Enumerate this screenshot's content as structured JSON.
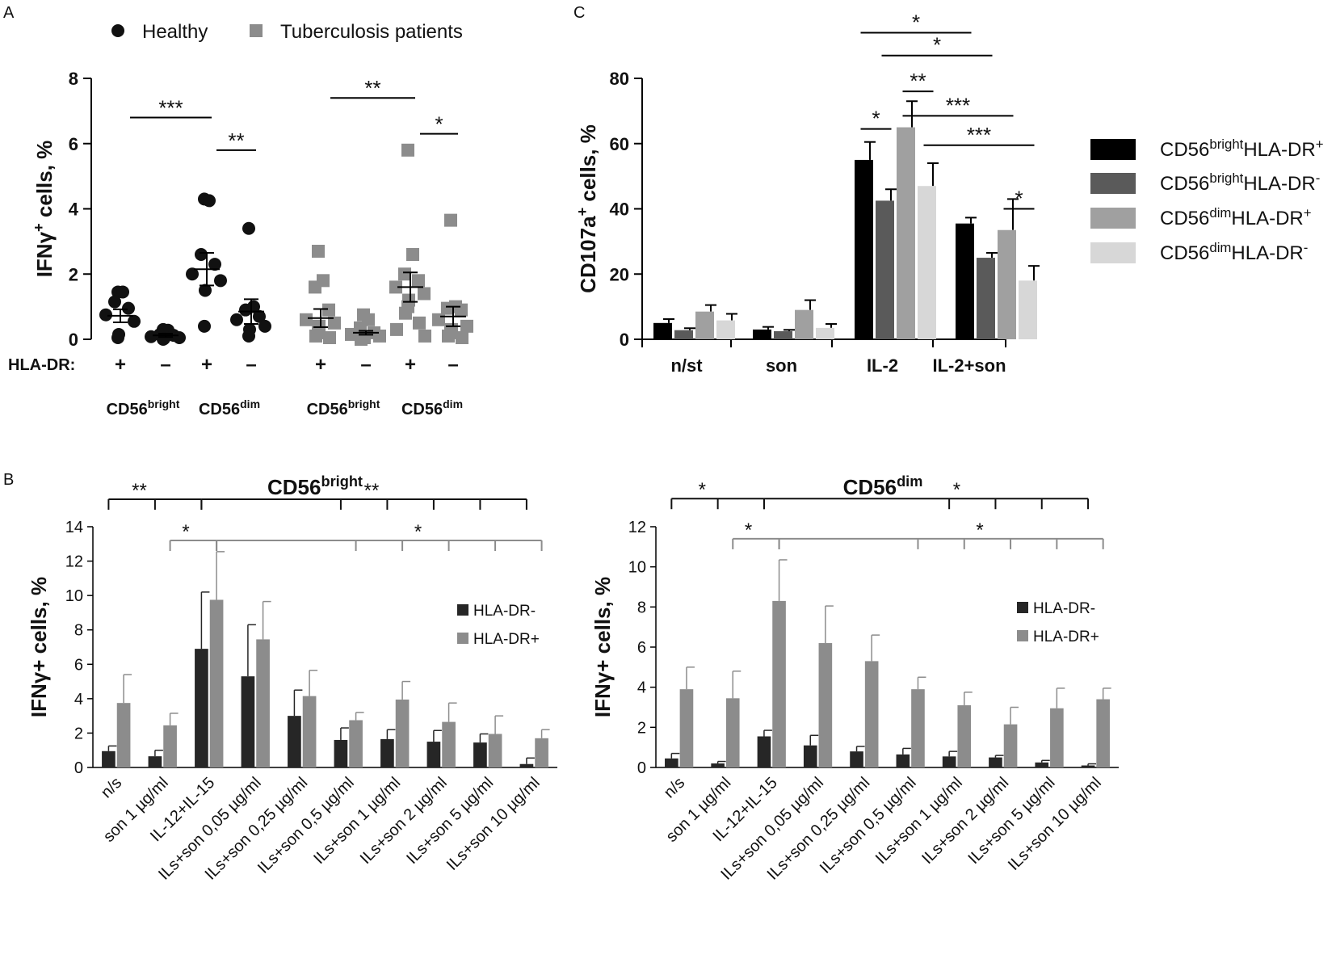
{
  "figure_labels": {
    "a": "A",
    "b": "B",
    "c": "C"
  },
  "chart_data": [
    {
      "id": "panelA",
      "type": "scatter",
      "title": "",
      "ylabel_main": "IFNγ",
      "ylabel_sup": "+",
      "ylabel_rest": " cells, %",
      "ylim": [
        0,
        8
      ],
      "yticks": [
        "0",
        "2",
        "4",
        "6",
        "8"
      ],
      "legend": [
        {
          "name": "Healthy",
          "color": "#111111",
          "marker": "circle"
        },
        {
          "name": "Tuberculosis patients",
          "color": "#8c8c8c",
          "marker": "square"
        }
      ],
      "row_label": "HLA-DR:",
      "hla_signs": [
        "+",
        "–",
        "+",
        "–",
        "+",
        "–",
        "+",
        "–"
      ],
      "group_labels": [
        {
          "main": "CD56",
          "sup": "bright"
        },
        {
          "main": "CD56",
          "sup": "dim"
        },
        {
          "main": "CD56",
          "sup": "bright"
        },
        {
          "main": "CD56",
          "sup": "dim"
        }
      ],
      "series": [
        {
          "name": "Healthy",
          "group": "CD56bright HLA-DR+",
          "color": "#111111",
          "marker": "circle",
          "mean": 0.72,
          "sem": 0.2,
          "values": [
            1.45,
            1.45,
            1.15,
            0.95,
            0.75,
            0.55,
            0.15,
            0.05
          ]
        },
        {
          "name": "Healthy",
          "group": "CD56bright HLA-DR-",
          "color": "#111111",
          "marker": "circle",
          "mean": 0.12,
          "sem": 0.05,
          "values": [
            0.3,
            0.28,
            0.15,
            0.12,
            0.08,
            0.05,
            0.02,
            0.0
          ]
        },
        {
          "name": "Healthy",
          "group": "CD56dim HLA-DR+",
          "color": "#111111",
          "marker": "circle",
          "mean": 2.15,
          "sem": 0.5,
          "values": [
            4.3,
            4.25,
            2.6,
            2.3,
            2.0,
            1.8,
            1.5,
            0.4
          ]
        },
        {
          "name": "Healthy",
          "group": "CD56dim HLA-DR-",
          "color": "#111111",
          "marker": "circle",
          "mean": 0.85,
          "sem": 0.38,
          "values": [
            3.4,
            1.0,
            0.9,
            0.7,
            0.6,
            0.4,
            0.3,
            0.1
          ]
        },
        {
          "name": "Tuberculosis patients",
          "group": "CD56bright HLA-DR+",
          "color": "#8c8c8c",
          "marker": "square",
          "mean": 0.65,
          "sem": 0.28,
          "values": [
            2.7,
            1.8,
            1.6,
            0.9,
            0.6,
            0.5,
            0.4,
            0.2,
            0.1,
            0.05
          ]
        },
        {
          "name": "Tuberculosis patients",
          "group": "CD56bright HLA-DR-",
          "color": "#8c8c8c",
          "marker": "square",
          "mean": 0.2,
          "sem": 0.06,
          "values": [
            0.75,
            0.6,
            0.35,
            0.2,
            0.15,
            0.1,
            0.05,
            0.05,
            0.0
          ]
        },
        {
          "name": "Tuberculosis patients",
          "group": "CD56dim HLA-DR+",
          "color": "#8c8c8c",
          "marker": "square",
          "mean": 1.6,
          "sem": 0.45,
          "values": [
            5.8,
            2.6,
            2.0,
            1.8,
            1.6,
            1.4,
            1.2,
            1.0,
            0.8,
            0.5,
            0.3,
            0.1
          ]
        },
        {
          "name": "Tuberculosis patients",
          "group": "CD56dim HLA-DR-",
          "color": "#8c8c8c",
          "marker": "square",
          "mean": 0.7,
          "sem": 0.3,
          "values": [
            3.65,
            1.0,
            0.95,
            0.9,
            0.6,
            0.4,
            0.3,
            0.2,
            0.1,
            0.05
          ]
        }
      ],
      "significance": [
        {
          "label": "***",
          "from": 0,
          "to": 2,
          "y": 6.8
        },
        {
          "label": "**",
          "from": 2,
          "to": 3,
          "y": 5.8
        },
        {
          "label": "**",
          "from": 4,
          "to": 6,
          "y": 7.4
        },
        {
          "label": "*",
          "from": 6,
          "to": 7,
          "y": 6.3
        }
      ]
    },
    {
      "id": "panelC",
      "type": "bar",
      "ylabel_main": "CD107a",
      "ylabel_sup": "+",
      "ylabel_rest": " cells, %",
      "ylim": [
        0,
        80
      ],
      "yticks": [
        "0",
        "20",
        "40",
        "60",
        "80"
      ],
      "categories": [
        "n/st",
        "son",
        "IL-2",
        "IL-2+son"
      ],
      "series": [
        {
          "name": "CD56brightHLA-DR+",
          "label_main": "CD56",
          "label_sup": "bright",
          "label_rest": "HLA-DR",
          "label_sign": "+",
          "color": "#000000",
          "values": [
            5.0,
            3.0,
            55.0,
            35.5
          ],
          "errors": [
            1.2,
            0.8,
            5.5,
            1.8
          ]
        },
        {
          "name": "CD56brightHLA-DR-",
          "label_main": "CD56",
          "label_sup": "bright",
          "label_rest": "HLA-DR",
          "label_sign": "-",
          "color": "#5a5a5a",
          "values": [
            2.8,
            2.5,
            42.5,
            25.0
          ],
          "errors": [
            0.6,
            0.4,
            3.5,
            1.5
          ]
        },
        {
          "name": "CD56dimHLA-DR+",
          "label_main": "CD56",
          "label_sup": "dim",
          "label_rest": "HLA-DR",
          "label_sign": "+",
          "color": "#a0a0a0",
          "values": [
            8.5,
            9.0,
            65.0,
            33.5
          ],
          "errors": [
            2.0,
            3.0,
            8.0,
            9.5
          ]
        },
        {
          "name": "CD56dimHLA-DR-",
          "label_main": "CD56",
          "label_sup": "dim",
          "label_rest": "HLA-DR",
          "label_sign": "-",
          "color": "#d7d7d7",
          "values": [
            5.8,
            3.5,
            47.0,
            18.0
          ],
          "errors": [
            2.0,
            1.2,
            7.0,
            4.5
          ]
        }
      ],
      "significance": [
        {
          "label": "*",
          "y": 94,
          "from": [
            2,
            0
          ],
          "to": [
            3,
            0
          ]
        },
        {
          "label": "*",
          "y": 87,
          "from": [
            2,
            1
          ],
          "to": [
            3,
            1
          ]
        },
        {
          "label": "**",
          "y": 76,
          "from": [
            2,
            2
          ],
          "to": [
            2,
            3
          ]
        },
        {
          "label": "*",
          "y": 64.5,
          "from": [
            2,
            0
          ],
          "to": [
            2,
            1
          ]
        },
        {
          "label": "***",
          "y": 68.5,
          "from": [
            2,
            2
          ],
          "to": [
            3,
            2
          ]
        },
        {
          "label": "***",
          "y": 59.5,
          "from": [
            2,
            3
          ],
          "to": [
            3,
            3
          ]
        },
        {
          "label": "*",
          "y": 40,
          "from": [
            3,
            2
          ],
          "to": [
            3,
            3
          ]
        }
      ]
    },
    {
      "id": "panelB1",
      "type": "bar",
      "title_main": "CD56",
      "title_sup": "bright",
      "ylabel": "IFNγ+ cells,  %",
      "ylim": [
        0,
        14
      ],
      "yticks": [
        "0",
        "2",
        "4",
        "6",
        "8",
        "10",
        "12",
        "14"
      ],
      "categories": [
        "n/s",
        "son 1 µg/ml",
        "IL-12+IL-15",
        "ILs+son 0,05 µg/ml",
        "ILs+son 0,25 µg/ml",
        "ILs+son 0,5 µg/ml",
        "ILs+son 1 µg/ml",
        "ILs+son 2 µg/ml",
        "ILs+son 5 µg/ml",
        "ILs+son 10 µg/ml"
      ],
      "series": [
        {
          "name": "HLA-DR-",
          "color": "#262626",
          "values": [
            0.95,
            0.65,
            6.9,
            5.3,
            3.0,
            1.6,
            1.65,
            1.5,
            1.45,
            0.2
          ],
          "errors": [
            0.3,
            0.35,
            3.3,
            3.0,
            1.5,
            0.7,
            0.55,
            0.65,
            0.5,
            0.35
          ]
        },
        {
          "name": "HLA-DR+",
          "color": "#8c8c8c",
          "values": [
            3.75,
            2.45,
            9.75,
            7.45,
            4.15,
            2.75,
            3.95,
            2.65,
            1.95,
            1.7
          ],
          "errors": [
            1.65,
            0.7,
            2.8,
            2.2,
            1.5,
            0.45,
            1.05,
            1.1,
            1.05,
            0.5
          ]
        }
      ],
      "significance": [
        {
          "label": "**",
          "color": "#111111",
          "y": 15.6,
          "hub": 2,
          "targets": [
            0,
            1
          ],
          "label_at": 0.5
        },
        {
          "label": "**",
          "color": "#111111",
          "y": 15.6,
          "hub": 2,
          "targets": [
            5,
            6,
            7,
            8,
            9
          ],
          "label_at": 5.5
        },
        {
          "label": "*",
          "color": "#8c8c8c",
          "y": 13.2,
          "hub": 2,
          "targets": [
            1,
            2
          ],
          "label_at": 1.5,
          "dr_plus": true
        },
        {
          "label": "*",
          "color": "#8c8c8c",
          "y": 13.2,
          "hub": 2,
          "targets": [
            5,
            6,
            7,
            8,
            9
          ],
          "label_at": 6.5,
          "dr_plus": true
        }
      ]
    },
    {
      "id": "panelB2",
      "type": "bar",
      "title_main": "CD56",
      "title_sup": "dim",
      "ylabel": "IFNγ+ cells,  %",
      "ylim": [
        0,
        12
      ],
      "yticks": [
        "0",
        "2",
        "4",
        "6",
        "8",
        "10",
        "12"
      ],
      "categories": [
        "n/s",
        "son 1 µg/ml",
        "IL-12+IL-15",
        "ILs+son 0,05 µg/ml",
        "ILs+son 0,25 µg/ml",
        "ILs+son 0,5 µg/ml",
        "ILs+son 1 µg/ml",
        "ILs+son 2 µg/ml",
        "ILs+son 5 µg/ml",
        "ILs+son 10 µg/ml"
      ],
      "series": [
        {
          "name": "HLA-DR-",
          "color": "#262626",
          "values": [
            0.45,
            0.2,
            1.55,
            1.1,
            0.8,
            0.65,
            0.55,
            0.5,
            0.25,
            0.1
          ],
          "errors": [
            0.25,
            0.1,
            0.3,
            0.5,
            0.25,
            0.3,
            0.25,
            0.1,
            0.1,
            0.08
          ]
        },
        {
          "name": "HLA-DR+",
          "color": "#8c8c8c",
          "values": [
            3.9,
            3.45,
            8.3,
            6.2,
            5.3,
            3.9,
            3.1,
            2.15,
            2.95,
            3.4
          ],
          "errors": [
            1.1,
            1.35,
            2.05,
            1.85,
            1.3,
            0.6,
            0.65,
            0.85,
            1.0,
            0.55
          ]
        }
      ],
      "significance": [
        {
          "label": "*",
          "color": "#111111",
          "y": 13.4,
          "hub": 2,
          "targets": [
            0,
            1
          ],
          "label_at": 0.5
        },
        {
          "label": "*",
          "color": "#111111",
          "y": 13.4,
          "hub": 2,
          "targets": [
            6,
            7,
            8,
            9
          ],
          "label_at": 6.0
        },
        {
          "label": "*",
          "color": "#8c8c8c",
          "y": 11.4,
          "hub": 2,
          "targets": [
            1,
            2
          ],
          "label_at": 1.5,
          "dr_plus": true
        },
        {
          "label": "*",
          "color": "#8c8c8c",
          "y": 11.4,
          "hub": 2,
          "targets": [
            5,
            6,
            7,
            8,
            9
          ],
          "label_at": 6.5,
          "dr_plus": true
        }
      ]
    }
  ]
}
